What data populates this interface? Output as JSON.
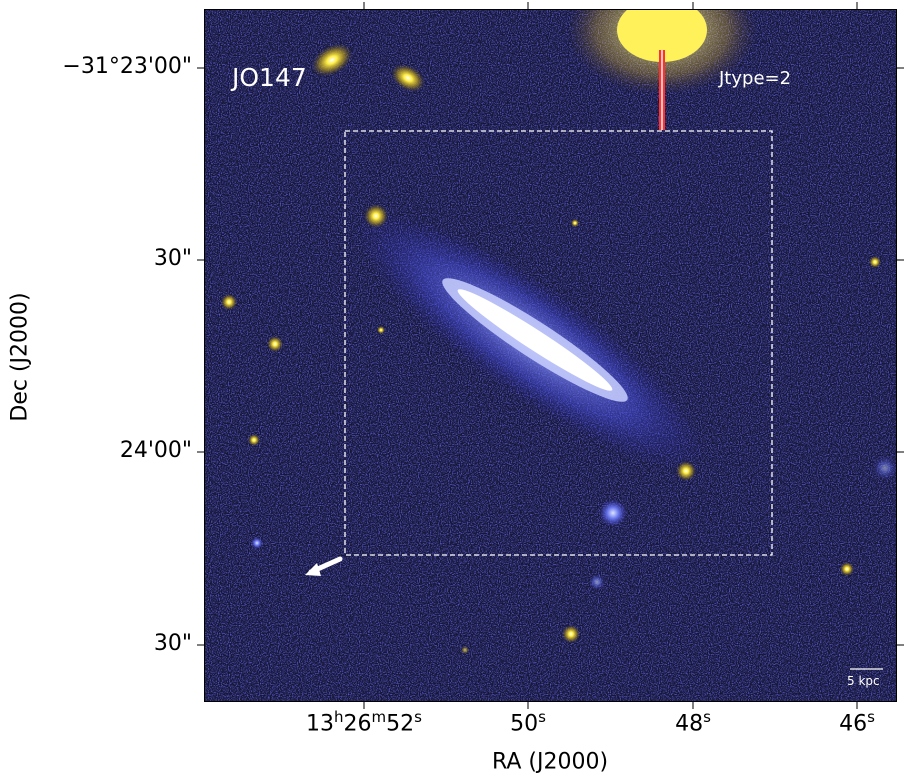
{
  "image": {
    "panel_label": "JO147",
    "classification_label": "Jtype=2",
    "scale_bar_label": "5 kpc",
    "colors": {
      "background_noise": "#1a1a3a",
      "noise_blue": "#2c2ccc",
      "galaxy_core": "#ffffff",
      "galaxy_halo": "#5a6cf0",
      "star_yellow": "#ffee44",
      "box_outline": "#ffffff"
    }
  },
  "axes": {
    "y_title": "Dec (J2000)",
    "x_title": "RA (J2000)",
    "y_ticks": [
      "−31°23'00\"",
      "30\"",
      "24'00\"",
      "30\""
    ],
    "x_ticks": [
      {
        "main": "13",
        "h": "h",
        "m_val": "26",
        "m": "m",
        "s_val": "52",
        "s": "s"
      },
      {
        "main": "50",
        "s": "s"
      },
      {
        "main": "48",
        "s": "s"
      },
      {
        "main": "46",
        "s": "s"
      }
    ]
  }
}
